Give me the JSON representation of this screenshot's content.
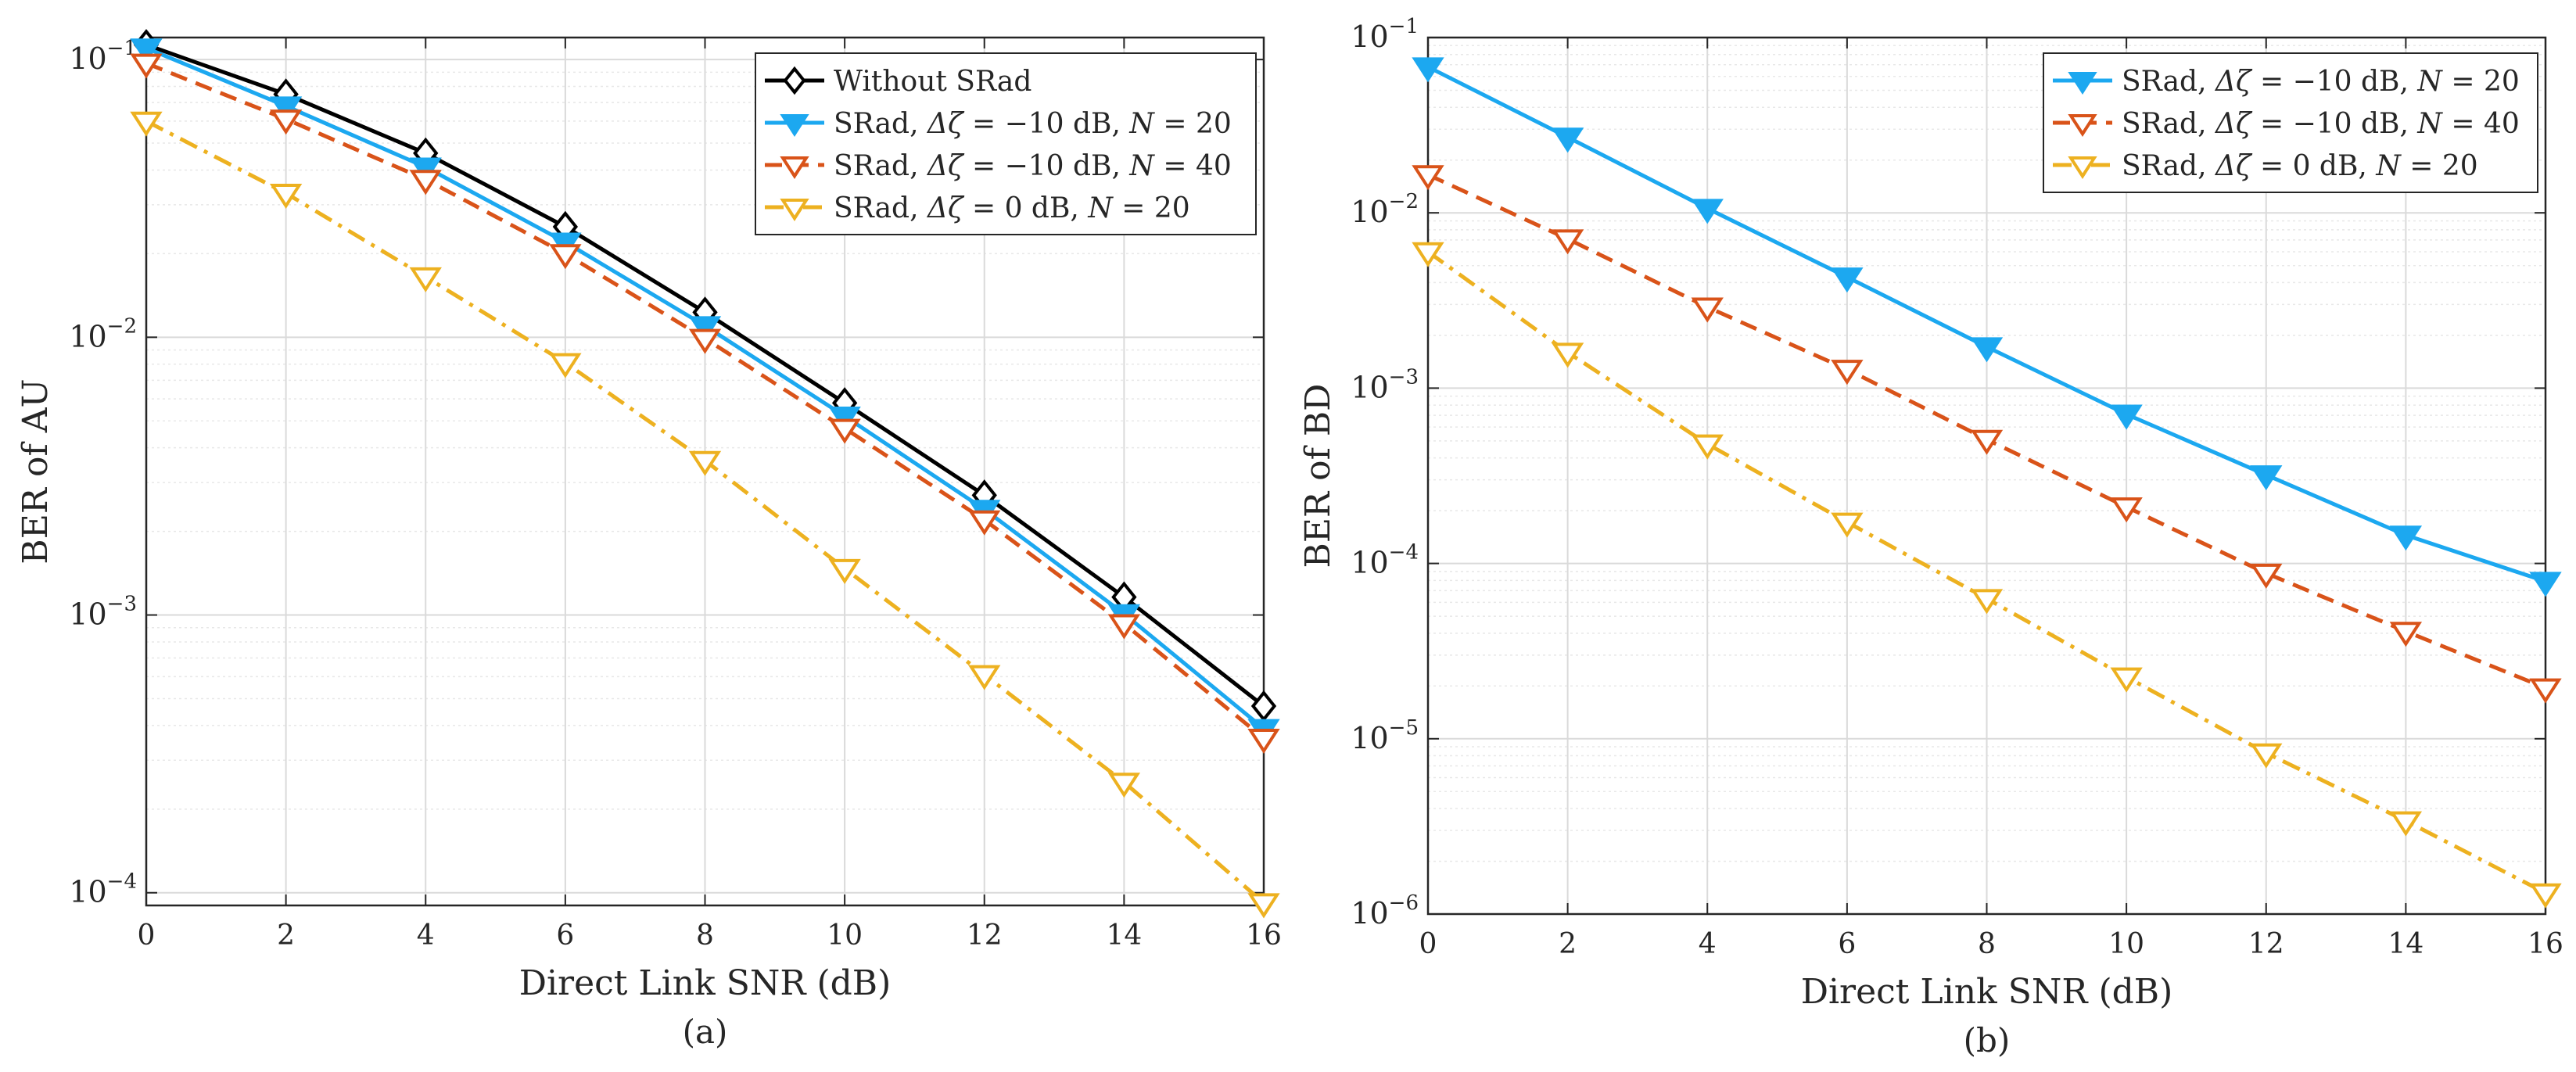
{
  "chart_data": [
    {
      "type": "line",
      "caption": "(a)",
      "xlabel": "Direct Link SNR (dB)",
      "ylabel": "BER of AU",
      "yscale": "log",
      "xlim": [
        0,
        16
      ],
      "ylim": [
        9e-05,
        0.12
      ],
      "grid": true,
      "legend_position": "top-right",
      "x_ticks": [
        "0",
        "2",
        "4",
        "6",
        "8",
        "10",
        "12",
        "14",
        "16"
      ],
      "y_ticks": [
        {
          "value": 0.1,
          "base": "10",
          "exp": "−1"
        },
        {
          "value": 0.01,
          "base": "10",
          "exp": "−2"
        },
        {
          "value": 0.001,
          "base": "10",
          "exp": "−3"
        },
        {
          "value": 0.0001,
          "base": "10",
          "exp": "−4"
        }
      ],
      "x": [
        0,
        2,
        4,
        6,
        8,
        10,
        12,
        14,
        16
      ],
      "series": [
        {
          "name": "Without SRad",
          "legend": {
            "pre": "Without SRad",
            "dz": "",
            "mid": "",
            "n": ""
          },
          "color": "#000000",
          "dash": "solid",
          "marker": "diamond",
          "values": [
            0.113,
            0.075,
            0.046,
            0.025,
            0.0123,
            0.0058,
            0.0027,
            0.00116,
            0.00047
          ]
        },
        {
          "name": "SRad, Δζ = −10 dB, N = 20",
          "legend": {
            "pre": "SRad, ",
            "dz": "Δζ",
            "mid": " = −10 dB, ",
            "n": "20"
          },
          "color": "#1ca8f0",
          "dash": "solid",
          "marker": "tri-filled",
          "values": [
            0.11,
            0.068,
            0.041,
            0.022,
            0.011,
            0.0052,
            0.0024,
            0.00101,
            0.00039
          ]
        },
        {
          "name": "SRad, Δζ = −10 dB, N = 40",
          "legend": {
            "pre": "SRad, ",
            "dz": "Δζ",
            "mid": " = −10 dB, ",
            "n": "40"
          },
          "color": "#d95319",
          "dash": "dashed",
          "marker": "tri-open",
          "values": [
            0.097,
            0.061,
            0.037,
            0.02,
            0.0099,
            0.0047,
            0.0022,
            0.00093,
            0.00036
          ]
        },
        {
          "name": "SRad, Δζ = 0 dB, N = 20",
          "legend": {
            "pre": "SRad, ",
            "dz": "Δζ",
            "mid": " = 0 dB, ",
            "n": "20"
          },
          "color": "#edb120",
          "dash": "dashdot",
          "marker": "tri-open",
          "values": [
            0.06,
            0.033,
            0.0165,
            0.0081,
            0.0036,
            0.00147,
            0.00061,
            0.00025,
            9.2e-05
          ]
        }
      ]
    },
    {
      "type": "line",
      "caption": "(b)",
      "xlabel": "Direct Link SNR (dB)",
      "ylabel": "BER of BD",
      "yscale": "log",
      "xlim": [
        0,
        16
      ],
      "ylim": [
        1e-06,
        0.1
      ],
      "grid": true,
      "legend_position": "top-right",
      "x_ticks": [
        "0",
        "2",
        "4",
        "6",
        "8",
        "10",
        "12",
        "14",
        "16"
      ],
      "y_ticks": [
        {
          "value": 0.1,
          "base": "10",
          "exp": "−1"
        },
        {
          "value": 0.01,
          "base": "10",
          "exp": "−2"
        },
        {
          "value": 0.001,
          "base": "10",
          "exp": "−3"
        },
        {
          "value": 0.0001,
          "base": "10",
          "exp": "−4"
        },
        {
          "value": 1e-05,
          "base": "10",
          "exp": "−5"
        },
        {
          "value": 1e-06,
          "base": "10",
          "exp": "−6"
        }
      ],
      "x": [
        0,
        2,
        4,
        6,
        8,
        10,
        12,
        14,
        16
      ],
      "series": [
        {
          "name": "SRad, Δζ = −10 dB, N = 20",
          "legend": {
            "pre": "SRad, ",
            "dz": "Δζ",
            "mid": " = −10 dB, ",
            "n": "20"
          },
          "color": "#1ca8f0",
          "dash": "solid",
          "marker": "tri-filled",
          "values": [
            0.068,
            0.027,
            0.0106,
            0.0043,
            0.00172,
            0.00071,
            0.00032,
            0.000145,
            7.9e-05
          ]
        },
        {
          "name": "SRad, Δζ = −10 dB, N = 40",
          "legend": {
            "pre": "SRad, ",
            "dz": "Δζ",
            "mid": " = −10 dB, ",
            "n": "40"
          },
          "color": "#d95319",
          "dash": "dashed",
          "marker": "tri-open",
          "values": [
            0.0165,
            0.0071,
            0.0029,
            0.00128,
            0.00051,
            0.00021,
            8.8e-05,
            4.1e-05,
            1.95e-05
          ]
        },
        {
          "name": "SRad, Δζ = 0 dB, N = 20",
          "legend": {
            "pre": "SRad, ",
            "dz": "Δζ",
            "mid": " = 0 dB, ",
            "n": "20"
          },
          "color": "#edb120",
          "dash": "dashdot",
          "marker": "tri-open",
          "values": [
            0.006,
            0.0016,
            0.00048,
            0.000172,
            6.3e-05,
            2.25e-05,
            8.3e-06,
            3.4e-06,
            1.32e-06
          ]
        }
      ]
    }
  ]
}
